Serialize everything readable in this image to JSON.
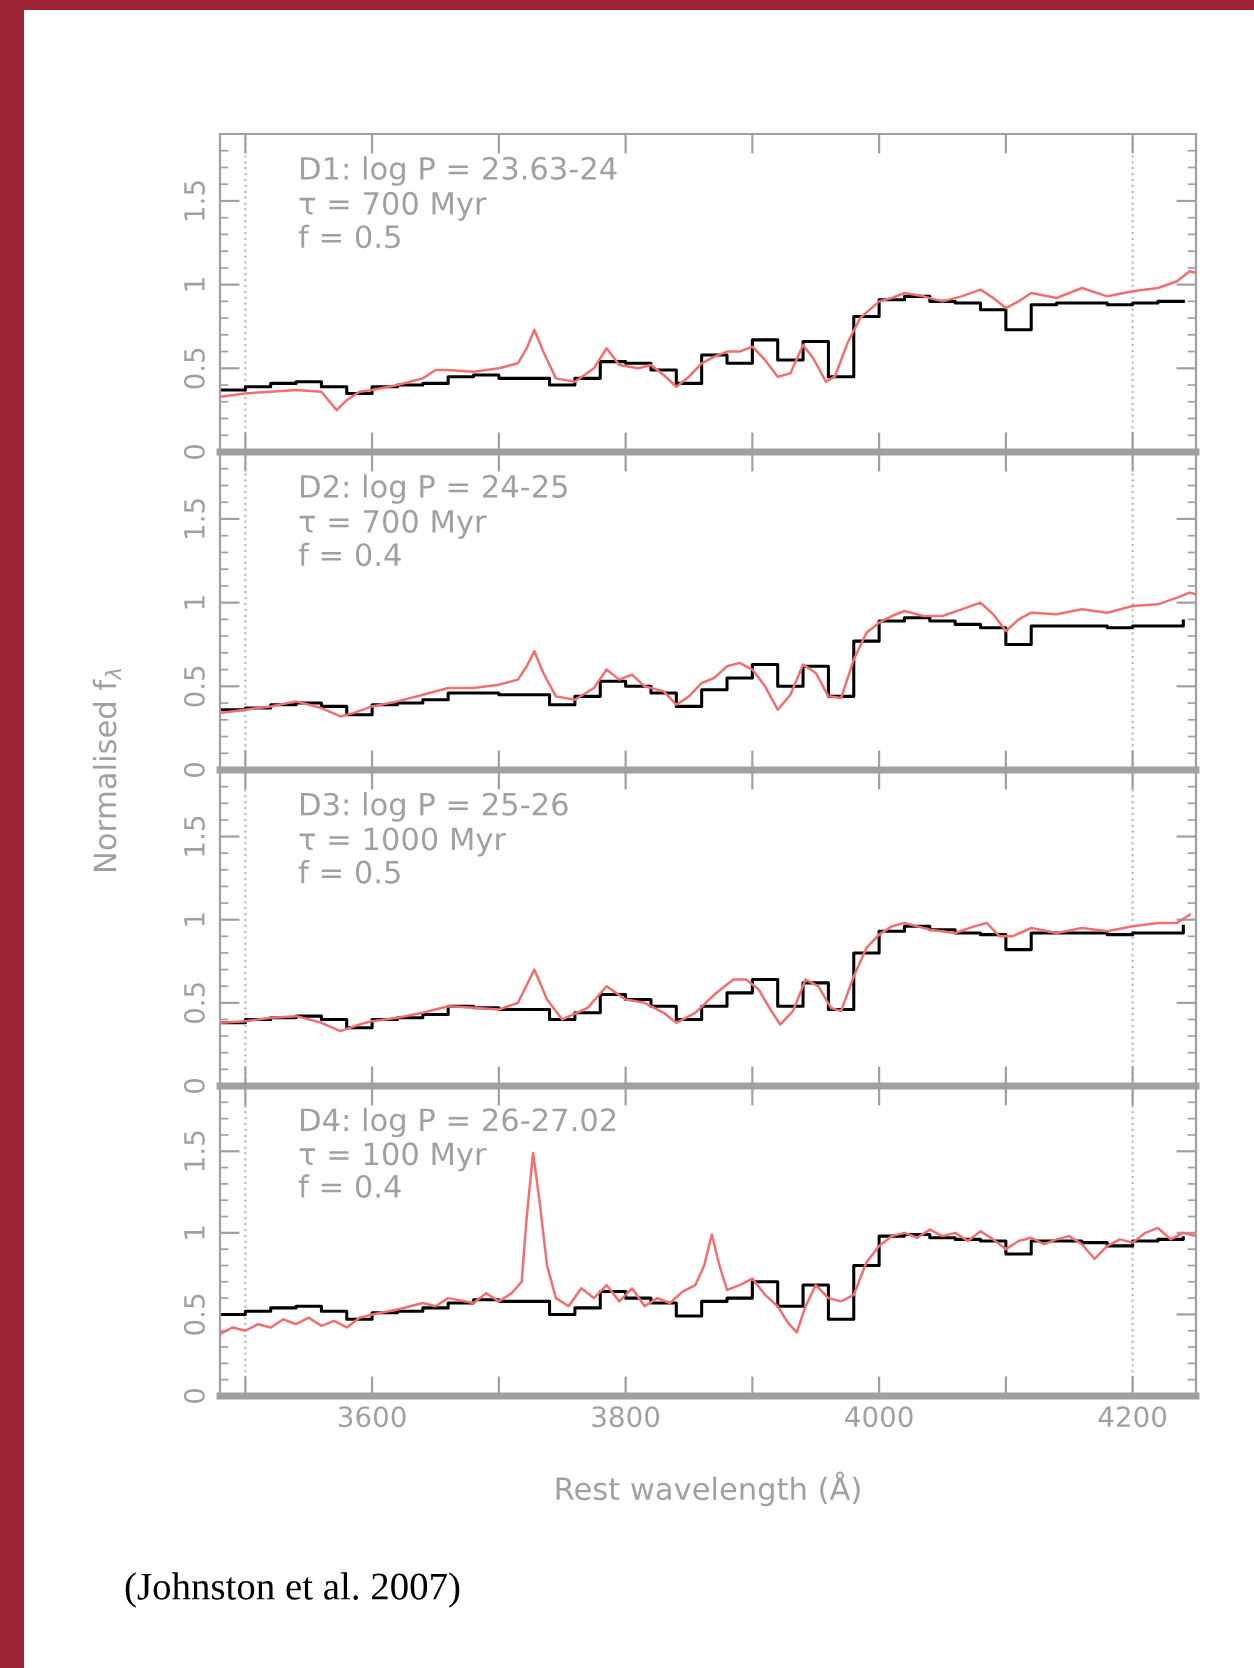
{
  "chart_data": [
    {
      "type": "line",
      "title": "D1: log P = 23.63-24",
      "annotations": [
        "τ = 700 Myr",
        "f = 0.5"
      ],
      "xlim": [
        3480,
        4250
      ],
      "xticks": [
        {
          "value": 3500,
          "label": null
        },
        3600,
        {
          "value": 3700,
          "label": null
        },
        3800,
        {
          "value": 3900,
          "label": null
        },
        4000,
        {
          "value": 4100,
          "label": null
        },
        4200
      ],
      "ylim": [
        0,
        1.9
      ],
      "yticks": [
        0,
        0.5,
        1,
        1.5
      ],
      "tick_labels": "y",
      "ref_lines": [
        {
          "axis": "x",
          "value": 3500,
          "color": "#bbbbbb",
          "line_style": "dotted"
        },
        {
          "axis": "x",
          "value": 4200,
          "color": "#bbbbbb",
          "line_style": "dotted"
        }
      ],
      "series": [
        {
          "color": "#f07070",
          "x": [
            3480,
            3500,
            3520,
            3540,
            3560,
            3572,
            3580,
            3590,
            3600,
            3620,
            3640,
            3650,
            3660,
            3680,
            3700,
            3715,
            3722,
            3728,
            3735,
            3745,
            3760,
            3775,
            3785,
            3795,
            3810,
            3820,
            3830,
            3840,
            3850,
            3860,
            3870,
            3880,
            3890,
            3900,
            3910,
            3920,
            3930,
            3940,
            3948,
            3958,
            3965,
            3975,
            3985,
            4000,
            4010,
            4020,
            4035,
            4050,
            4065,
            4080,
            4090,
            4100,
            4110,
            4120,
            4140,
            4160,
            4180,
            4200,
            4220,
            4235,
            4245,
            4250
          ],
          "values": [
            0.33,
            0.35,
            0.36,
            0.37,
            0.36,
            0.25,
            0.31,
            0.36,
            0.37,
            0.4,
            0.44,
            0.49,
            0.49,
            0.48,
            0.5,
            0.53,
            0.62,
            0.73,
            0.6,
            0.44,
            0.42,
            0.5,
            0.62,
            0.52,
            0.5,
            0.52,
            0.46,
            0.39,
            0.45,
            0.53,
            0.57,
            0.6,
            0.6,
            0.63,
            0.55,
            0.45,
            0.47,
            0.64,
            0.56,
            0.42,
            0.45,
            0.65,
            0.8,
            0.9,
            0.92,
            0.95,
            0.93,
            0.9,
            0.93,
            0.97,
            0.92,
            0.86,
            0.9,
            0.95,
            0.92,
            0.98,
            0.93,
            0.96,
            0.98,
            1.02,
            1.08,
            1.07
          ]
        },
        {
          "type": "step",
          "color": "#000000",
          "x": [
            3480,
            3500,
            3520,
            3540,
            3560,
            3580,
            3600,
            3620,
            3640,
            3660,
            3680,
            3700,
            3720,
            3740,
            3760,
            3780,
            3800,
            3820,
            3840,
            3860,
            3880,
            3900,
            3920,
            3940,
            3960,
            3980,
            4000,
            4020,
            4040,
            4060,
            4080,
            4100,
            4120,
            4140,
            4160,
            4180,
            4200,
            4220,
            4240
          ],
          "values": [
            0.37,
            0.39,
            0.41,
            0.42,
            0.39,
            0.35,
            0.39,
            0.4,
            0.41,
            0.45,
            0.46,
            0.44,
            0.44,
            0.4,
            0.44,
            0.54,
            0.53,
            0.49,
            0.41,
            0.58,
            0.53,
            0.67,
            0.55,
            0.66,
            0.45,
            0.81,
            0.91,
            0.93,
            0.9,
            0.89,
            0.85,
            0.73,
            0.88,
            0.89,
            0.89,
            0.88,
            0.89,
            0.9,
            0.9
          ]
        }
      ]
    },
    {
      "type": "line",
      "title": "D2: log P = 24-25",
      "annotations": [
        "τ = 700 Myr",
        "f = 0.4"
      ],
      "ylabel": "Normalised f$_{λ}$",
      "xlim": [
        3480,
        4250
      ],
      "xticks": [
        {
          "value": 3500,
          "label": null
        },
        3600,
        {
          "value": 3700,
          "label": null
        },
        3800,
        {
          "value": 3900,
          "label": null
        },
        4000,
        {
          "value": 4100,
          "label": null
        },
        4200
      ],
      "ylim": [
        0,
        1.9
      ],
      "yticks": [
        0,
        0.5,
        1,
        1.5
      ],
      "tick_labels": "y",
      "ref_lines": [
        {
          "axis": "x",
          "value": 3500,
          "color": "#bbbbbb",
          "line_style": "dotted"
        },
        {
          "axis": "x",
          "value": 4200,
          "color": "#bbbbbb",
          "line_style": "dotted"
        }
      ],
      "series": [
        {
          "color": "#f07070",
          "x": [
            3480,
            3500,
            3520,
            3540,
            3560,
            3575,
            3585,
            3600,
            3620,
            3640,
            3660,
            3680,
            3700,
            3715,
            3722,
            3728,
            3735,
            3745,
            3760,
            3775,
            3785,
            3795,
            3805,
            3815,
            3830,
            3840,
            3850,
            3860,
            3870,
            3880,
            3890,
            3900,
            3910,
            3920,
            3930,
            3940,
            3950,
            3960,
            3970,
            3980,
            3990,
            4000,
            4010,
            4020,
            4035,
            4050,
            4065,
            4080,
            4090,
            4100,
            4110,
            4120,
            4140,
            4160,
            4180,
            4200,
            4220,
            4235,
            4245,
            4250
          ],
          "values": [
            0.34,
            0.36,
            0.38,
            0.41,
            0.37,
            0.32,
            0.34,
            0.38,
            0.41,
            0.45,
            0.49,
            0.49,
            0.51,
            0.54,
            0.62,
            0.71,
            0.58,
            0.44,
            0.42,
            0.49,
            0.6,
            0.54,
            0.57,
            0.5,
            0.47,
            0.39,
            0.44,
            0.52,
            0.55,
            0.62,
            0.64,
            0.6,
            0.5,
            0.36,
            0.45,
            0.63,
            0.58,
            0.44,
            0.43,
            0.66,
            0.82,
            0.88,
            0.92,
            0.95,
            0.92,
            0.92,
            0.96,
            1.0,
            0.93,
            0.83,
            0.9,
            0.94,
            0.93,
            0.96,
            0.94,
            0.98,
            0.99,
            1.03,
            1.06,
            1.05
          ]
        },
        {
          "type": "step",
          "color": "#000000",
          "x": [
            3480,
            3500,
            3520,
            3540,
            3560,
            3580,
            3600,
            3620,
            3640,
            3660,
            3680,
            3700,
            3720,
            3740,
            3760,
            3780,
            3800,
            3820,
            3840,
            3860,
            3880,
            3900,
            3920,
            3940,
            3960,
            3980,
            4000,
            4020,
            4040,
            4060,
            4080,
            4100,
            4120,
            4140,
            4160,
            4180,
            4200,
            4220,
            4240
          ],
          "values": [
            0.36,
            0.37,
            0.39,
            0.4,
            0.38,
            0.33,
            0.39,
            0.4,
            0.42,
            0.46,
            0.46,
            0.45,
            0.45,
            0.39,
            0.44,
            0.53,
            0.5,
            0.46,
            0.38,
            0.48,
            0.55,
            0.63,
            0.5,
            0.62,
            0.44,
            0.77,
            0.89,
            0.91,
            0.89,
            0.87,
            0.85,
            0.75,
            0.86,
            0.86,
            0.86,
            0.85,
            0.86,
            0.86,
            0.89
          ]
        }
      ]
    },
    {
      "type": "line",
      "title": "D3: log P = 25-26",
      "annotations": [
        "τ = 1000 Myr",
        "f = 0.5"
      ],
      "xlim": [
        3480,
        4250
      ],
      "xticks": [
        {
          "value": 3500,
          "label": null
        },
        3600,
        {
          "value": 3700,
          "label": null
        },
        3800,
        {
          "value": 3900,
          "label": null
        },
        4000,
        {
          "value": 4100,
          "label": null
        },
        4200
      ],
      "ylim": [
        0,
        1.9
      ],
      "yticks": [
        0,
        0.5,
        1,
        1.5
      ],
      "tick_labels": "y",
      "ref_lines": [
        {
          "axis": "x",
          "value": 3500,
          "color": "#bbbbbb",
          "line_style": "dotted"
        },
        {
          "axis": "x",
          "value": 4200,
          "color": "#bbbbbb",
          "line_style": "dotted"
        }
      ],
      "series": [
        {
          "color": "#f07070",
          "x": [
            3480,
            3500,
            3520,
            3540,
            3560,
            3575,
            3590,
            3600,
            3620,
            3640,
            3660,
            3680,
            3700,
            3715,
            3728,
            3738,
            3750,
            3770,
            3785,
            3800,
            3815,
            3830,
            3840,
            3855,
            3870,
            3885,
            3895,
            3905,
            3915,
            3922,
            3932,
            3942,
            3952,
            3962,
            3970,
            3980,
            3990,
            4000,
            4010,
            4020,
            4040,
            4060,
            4075,
            4085,
            4095,
            4105,
            4120,
            4140,
            4160,
            4180,
            4200,
            4220,
            4235,
            4245
          ],
          "values": [
            0.38,
            0.39,
            0.41,
            0.42,
            0.38,
            0.33,
            0.37,
            0.39,
            0.41,
            0.44,
            0.48,
            0.47,
            0.46,
            0.5,
            0.7,
            0.52,
            0.4,
            0.47,
            0.6,
            0.52,
            0.5,
            0.44,
            0.38,
            0.44,
            0.55,
            0.64,
            0.64,
            0.58,
            0.45,
            0.37,
            0.45,
            0.64,
            0.6,
            0.47,
            0.45,
            0.66,
            0.83,
            0.91,
            0.96,
            0.98,
            0.94,
            0.92,
            0.96,
            0.98,
            0.9,
            0.9,
            0.95,
            0.92,
            0.95,
            0.93,
            0.96,
            0.98,
            0.98,
            1.03
          ]
        },
        {
          "type": "step",
          "color": "#000000",
          "x": [
            3480,
            3500,
            3520,
            3540,
            3560,
            3580,
            3600,
            3620,
            3640,
            3660,
            3680,
            3700,
            3720,
            3740,
            3760,
            3780,
            3800,
            3820,
            3840,
            3860,
            3880,
            3900,
            3920,
            3940,
            3960,
            3980,
            4000,
            4020,
            4040,
            4060,
            4080,
            4100,
            4120,
            4140,
            4160,
            4180,
            4200,
            4220,
            4240
          ],
          "values": [
            0.38,
            0.4,
            0.41,
            0.42,
            0.4,
            0.35,
            0.4,
            0.41,
            0.43,
            0.48,
            0.47,
            0.46,
            0.46,
            0.4,
            0.44,
            0.55,
            0.52,
            0.48,
            0.4,
            0.48,
            0.56,
            0.64,
            0.48,
            0.62,
            0.46,
            0.8,
            0.93,
            0.96,
            0.94,
            0.92,
            0.91,
            0.82,
            0.92,
            0.92,
            0.92,
            0.91,
            0.92,
            0.92,
            0.96
          ]
        }
      ]
    },
    {
      "type": "line",
      "title": "D4: log P = 26-27.02",
      "annotations": [
        "τ = 100 Myr",
        "f = 0.4",
        "(Johnston et al. 2007)"
      ],
      "xlabel": "Rest wavelength (Å)",
      "xlim": [
        3480,
        4250
      ],
      "xticks": [
        {
          "value": 3500,
          "label": null
        },
        3600,
        {
          "value": 3700,
          "label": null
        },
        3800,
        {
          "value": 3900,
          "label": null
        },
        4000,
        {
          "value": 4100,
          "label": null
        },
        4200
      ],
      "ylim": [
        0,
        1.9
      ],
      "yticks": [
        0,
        0.5,
        1,
        1.5
      ],
      "ref_lines": [
        {
          "axis": "x",
          "value": 3500,
          "color": "#bbbbbb",
          "line_style": "dotted"
        },
        {
          "axis": "x",
          "value": 4200,
          "color": "#bbbbbb",
          "line_style": "dotted"
        }
      ],
      "series": [
        {
          "color": "#f07070",
          "x": [
            3480,
            3490,
            3500,
            3510,
            3520,
            3530,
            3540,
            3550,
            3560,
            3570,
            3580,
            3590,
            3600,
            3620,
            3640,
            3650,
            3660,
            3680,
            3690,
            3700,
            3710,
            3718,
            3722,
            3727,
            3732,
            3738,
            3745,
            3755,
            3765,
            3775,
            3785,
            3795,
            3805,
            3815,
            3825,
            3835,
            3845,
            3855,
            3862,
            3868,
            3874,
            3880,
            3890,
            3900,
            3910,
            3920,
            3928,
            3935,
            3942,
            3950,
            3960,
            3970,
            3980,
            3990,
            4000,
            4010,
            4020,
            4030,
            4040,
            4050,
            4060,
            4070,
            4080,
            4090,
            4100,
            4110,
            4120,
            4130,
            4140,
            4150,
            4160,
            4170,
            4180,
            4190,
            4200,
            4210,
            4220,
            4230,
            4240,
            4250
          ],
          "values": [
            0.38,
            0.42,
            0.4,
            0.44,
            0.42,
            0.47,
            0.44,
            0.48,
            0.43,
            0.46,
            0.42,
            0.48,
            0.5,
            0.53,
            0.57,
            0.55,
            0.6,
            0.57,
            0.63,
            0.58,
            0.63,
            0.7,
            1.1,
            1.49,
            1.2,
            0.8,
            0.6,
            0.55,
            0.66,
            0.6,
            0.68,
            0.58,
            0.66,
            0.55,
            0.6,
            0.57,
            0.64,
            0.68,
            0.8,
            0.99,
            0.8,
            0.65,
            0.68,
            0.72,
            0.62,
            0.55,
            0.45,
            0.39,
            0.55,
            0.68,
            0.6,
            0.58,
            0.62,
            0.82,
            0.92,
            0.98,
            1.0,
            0.97,
            1.02,
            0.98,
            1.0,
            0.95,
            1.01,
            0.96,
            0.9,
            0.95,
            0.97,
            0.93,
            0.96,
            0.98,
            0.93,
            0.84,
            0.92,
            0.96,
            0.94,
            1.0,
            1.03,
            0.96,
            1.0,
            0.98
          ]
        },
        {
          "type": "step",
          "color": "#000000",
          "x": [
            3480,
            3500,
            3520,
            3540,
            3560,
            3580,
            3600,
            3620,
            3640,
            3660,
            3680,
            3700,
            3720,
            3740,
            3760,
            3780,
            3800,
            3820,
            3840,
            3860,
            3880,
            3900,
            3920,
            3940,
            3960,
            3980,
            4000,
            4020,
            4040,
            4060,
            4080,
            4100,
            4120,
            4140,
            4160,
            4180,
            4200,
            4220,
            4240
          ],
          "values": [
            0.5,
            0.52,
            0.54,
            0.55,
            0.52,
            0.47,
            0.51,
            0.52,
            0.54,
            0.57,
            0.59,
            0.58,
            0.58,
            0.5,
            0.54,
            0.64,
            0.6,
            0.57,
            0.49,
            0.58,
            0.6,
            0.7,
            0.55,
            0.68,
            0.47,
            0.8,
            0.98,
            0.99,
            0.97,
            0.96,
            0.95,
            0.87,
            0.95,
            0.95,
            0.94,
            0.92,
            0.95,
            0.96,
            0.97
          ]
        }
      ]
    }
  ]
}
